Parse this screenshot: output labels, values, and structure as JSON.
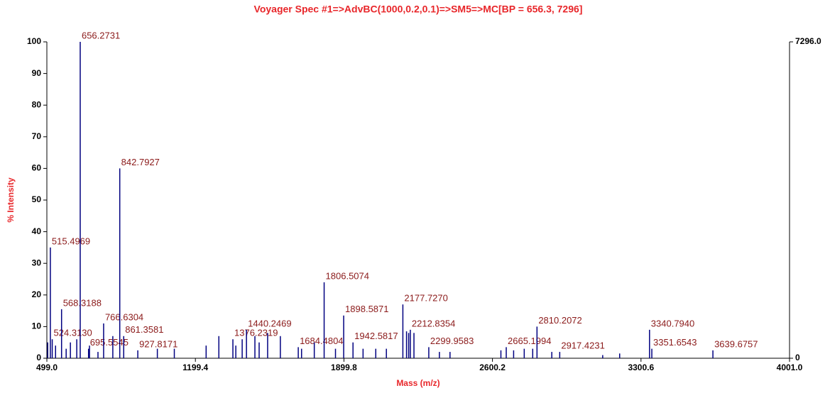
{
  "chart_data": {
    "type": "stem",
    "title": "Voyager Spec #1=>AdvBC(1000,0.2,0.1)=>SM5=>MC[BP = 656.3, 7296]",
    "xlabel": "Mass (m/z)",
    "ylabel": "% Intensity",
    "color": "#000080",
    "label_color": "#8b1a1a",
    "x": [
      503,
      515.4969,
      524.313,
      540,
      568.3188,
      590,
      610,
      640,
      656.2731,
      695.5545,
      700,
      740,
      766.6304,
      810,
      842.7927,
      861.3581,
      927.8171,
      1020,
      1100,
      1250,
      1310,
      1376.2319,
      1390,
      1420,
      1440.2469,
      1480,
      1500,
      1540,
      1600,
      1684.4804,
      1700,
      1760,
      1806.5074,
      1860,
      1898.5871,
      1942.5817,
      1990,
      2050,
      2100,
      2177.727,
      2195,
      2205,
      2212.8354,
      2230,
      2299.9583,
      2350,
      2400,
      2640,
      2665.1994,
      2700,
      2750,
      2790,
      2810.2072,
      2880,
      2917.4231,
      3120,
      3200,
      3340.794,
      3351.6543,
      3639.6757
    ],
    "values": [
      5,
      35,
      6,
      4,
      15.5,
      3,
      5,
      6,
      100,
      3,
      4,
      2,
      11,
      7,
      60,
      7,
      2.5,
      3,
      3,
      4,
      7,
      6,
      4,
      6,
      9,
      7,
      5,
      8,
      7,
      3.5,
      3,
      5,
      24,
      3,
      13.5,
      5,
      3,
      3,
      3,
      17,
      8.5,
      8,
      9,
      8,
      3.5,
      2,
      2,
      2.5,
      3.5,
      2.5,
      3,
      3,
      10,
      2,
      2,
      1,
      1.5,
      9,
      3,
      2.5
    ],
    "x_labels": [
      null,
      "515.4969",
      "524.3130",
      null,
      "568.3188",
      null,
      null,
      null,
      "656.2731",
      "695.5545",
      null,
      null,
      "766.6304",
      null,
      "842.7927",
      "861.3581",
      "927.8171",
      null,
      null,
      null,
      null,
      "1376.2319",
      null,
      null,
      "1440.2469",
      null,
      null,
      null,
      null,
      "1684.4804",
      null,
      null,
      "1806.5074",
      null,
      "1898.5871",
      "1942.5817",
      null,
      null,
      null,
      "2177.7270",
      null,
      null,
      "2212.8354",
      null,
      "2299.9583",
      null,
      null,
      null,
      "2665.1994",
      null,
      null,
      null,
      "2810.2072",
      null,
      "2917.4231",
      null,
      null,
      "3340.7940",
      "3351.6543",
      "3639.6757"
    ],
    "xlim": [
      499,
      4001
    ],
    "xticks": [
      {
        "value": 499,
        "label": "499.0"
      },
      {
        "value": 1199.4,
        "label": "1199.4"
      },
      {
        "value": 1899.8,
        "label": "1899.8"
      },
      {
        "value": 2600.2,
        "label": "2600.2"
      },
      {
        "value": 3300.6,
        "label": "3300.6"
      },
      {
        "value": 4001,
        "label": "4001.0"
      }
    ],
    "ylim": [
      0,
      100
    ],
    "yticks": [
      0,
      10,
      20,
      30,
      40,
      50,
      60,
      70,
      80,
      90,
      100
    ],
    "y2lim": [
      0,
      7296
    ],
    "y2ticks": [
      0,
      {
        "value": 7296,
        "label": "7296.0"
      }
    ]
  }
}
